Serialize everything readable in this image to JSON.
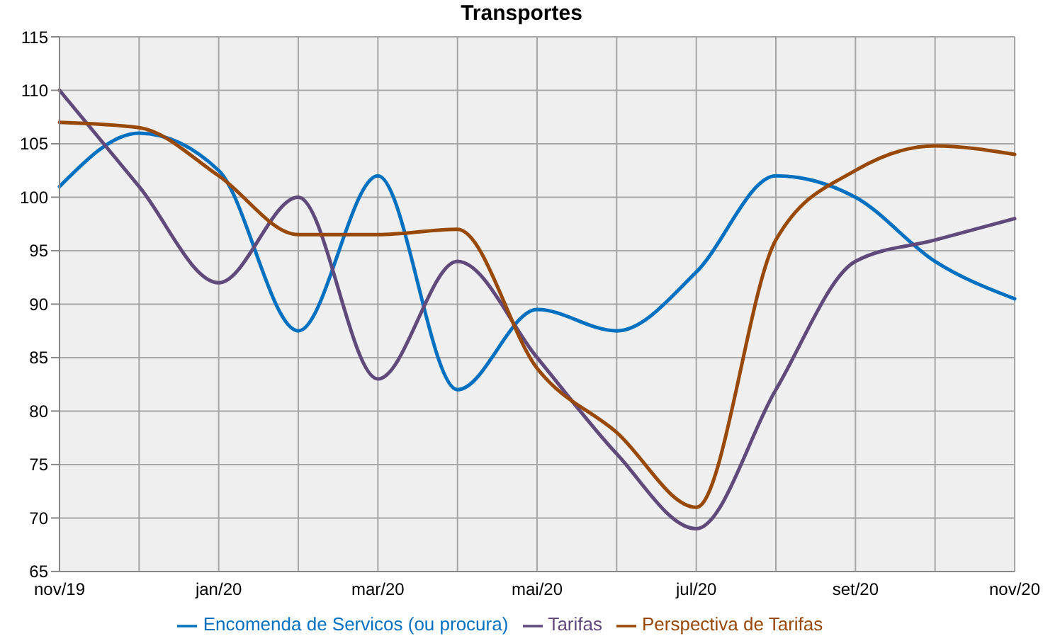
{
  "chart_data": {
    "type": "line",
    "title": "Transportes",
    "categories": [
      "nov/19",
      null,
      "jan/20",
      null,
      "mar/20",
      null,
      "mai/20",
      null,
      "jul/20",
      null,
      "set/20",
      null,
      "nov/20"
    ],
    "series": [
      {
        "name": "Encomenda de Servicos (ou procura)",
        "color": "#0070c0",
        "values": [
          101,
          106,
          102.5,
          87.5,
          102,
          82,
          89.5,
          87.5,
          93,
          102,
          100,
          94,
          90.5
        ]
      },
      {
        "name": "Tarifas",
        "color": "#604a7b",
        "values": [
          110,
          101,
          92,
          100,
          83,
          94,
          85,
          76,
          69,
          82,
          94,
          96,
          98
        ]
      },
      {
        "name": "Perspectiva de Tarifas",
        "color": "#984807",
        "values": [
          107,
          106.5,
          102,
          96.5,
          96.5,
          97,
          84,
          78,
          71,
          96,
          102.5,
          104.8,
          104
        ]
      }
    ],
    "ylim": [
      65,
      115
    ],
    "yticks": [
      65,
      70,
      75,
      80,
      85,
      90,
      95,
      100,
      105,
      110,
      115
    ],
    "grid": true,
    "legend": "bottom",
    "marker": "none"
  }
}
